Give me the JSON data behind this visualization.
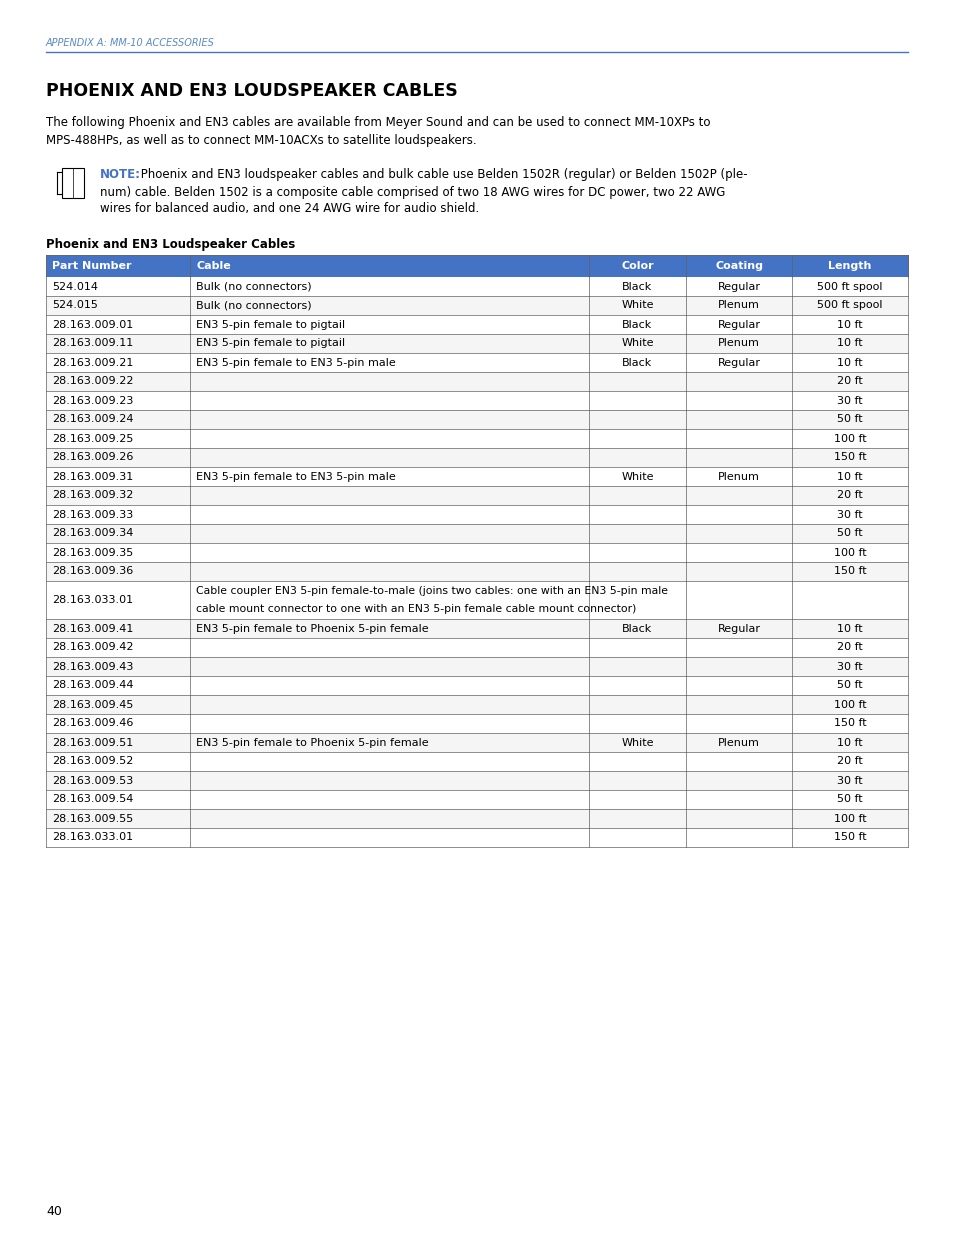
{
  "page_header": "APPENDIX A: MM-10 ACCESSORIES",
  "title": "PHOENIX AND EN3 LOUDSPEAKER CABLES",
  "intro_text_line1": "The following Phoenix and EN3 cables are available from Meyer Sound and can be used to connect MM-10XPs to",
  "intro_text_line2": "MPS-488HPs, as well as to connect MM-10ACXs to satellite loudspeakers.",
  "note_bold": "NOTE:",
  "note_line1_rest": " Phoenix and EN3 loudspeaker cables and bulk cable use Belden 1502R (regular) or Belden 1502P (ple-",
  "note_line2": "num) cable. Belden 1502 is a composite cable comprised of two 18 AWG wires for DC power, two 22 AWG",
  "note_line3": "wires for balanced audio, and one 24 AWG wire for audio shield.",
  "table_title": "Phoenix and EN3 Loudspeaker Cables",
  "header_bg": "#4472C4",
  "header_text_color": "#FFFFFF",
  "border_color": "#808080",
  "col_headers": [
    "Part Number",
    "Cable",
    "Color",
    "Coating",
    "Length"
  ],
  "rows": [
    [
      "524.014",
      "Bulk (no connectors)",
      "Black",
      "Regular",
      "500 ft spool"
    ],
    [
      "524.015",
      "Bulk (no connectors)",
      "White",
      "Plenum",
      "500 ft spool"
    ],
    [
      "28.163.009.01",
      "EN3 5-pin female to pigtail",
      "Black",
      "Regular",
      "10 ft"
    ],
    [
      "28.163.009.11",
      "EN3 5-pin female to pigtail",
      "White",
      "Plenum",
      "10 ft"
    ],
    [
      "28.163.009.21",
      "EN3 5-pin female to EN3 5-pin male",
      "Black",
      "Regular",
      "10 ft"
    ],
    [
      "28.163.009.22",
      "",
      "",
      "",
      "20 ft"
    ],
    [
      "28.163.009.23",
      "",
      "",
      "",
      "30 ft"
    ],
    [
      "28.163.009.24",
      "",
      "",
      "",
      "50 ft"
    ],
    [
      "28.163.009.25",
      "",
      "",
      "",
      "100 ft"
    ],
    [
      "28.163.009.26",
      "",
      "",
      "",
      "150 ft"
    ],
    [
      "28.163.009.31",
      "EN3 5-pin female to EN3 5-pin male",
      "White",
      "Plenum",
      "10 ft"
    ],
    [
      "28.163.009.32",
      "",
      "",
      "",
      "20 ft"
    ],
    [
      "28.163.009.33",
      "",
      "",
      "",
      "30 ft"
    ],
    [
      "28.163.009.34",
      "",
      "",
      "",
      "50 ft"
    ],
    [
      "28.163.009.35",
      "",
      "",
      "",
      "100 ft"
    ],
    [
      "28.163.009.36",
      "",
      "",
      "",
      "150 ft"
    ],
    [
      "28.163.033.01",
      "Cable coupler EN3 5-pin female-to-male (joins two cables: one with an EN3 5-pin male\ncable mount connector to one with an EN3 5-pin female cable mount connector)",
      "",
      "",
      ""
    ],
    [
      "28.163.009.41",
      "EN3 5-pin female to Phoenix 5-pin female",
      "Black",
      "Regular",
      "10 ft"
    ],
    [
      "28.163.009.42",
      "",
      "",
      "",
      "20 ft"
    ],
    [
      "28.163.009.43",
      "",
      "",
      "",
      "30 ft"
    ],
    [
      "28.163.009.44",
      "",
      "",
      "",
      "50 ft"
    ],
    [
      "28.163.009.45",
      "",
      "",
      "",
      "100 ft"
    ],
    [
      "28.163.009.46",
      "",
      "",
      "",
      "150 ft"
    ],
    [
      "28.163.009.51",
      "EN3 5-pin female to Phoenix 5-pin female",
      "White",
      "Plenum",
      "10 ft"
    ],
    [
      "28.163.009.52",
      "",
      "",
      "",
      "20 ft"
    ],
    [
      "28.163.009.53",
      "",
      "",
      "",
      "30 ft"
    ],
    [
      "28.163.009.54",
      "",
      "",
      "",
      "50 ft"
    ],
    [
      "28.163.009.55",
      "",
      "",
      "",
      "100 ft"
    ],
    [
      "28.163.033.01",
      "",
      "",
      "",
      "150 ft"
    ]
  ],
  "page_number": "40",
  "header_color": "#5B8AC5",
  "line_color": "#4472C4",
  "note_color": "#4472C4"
}
